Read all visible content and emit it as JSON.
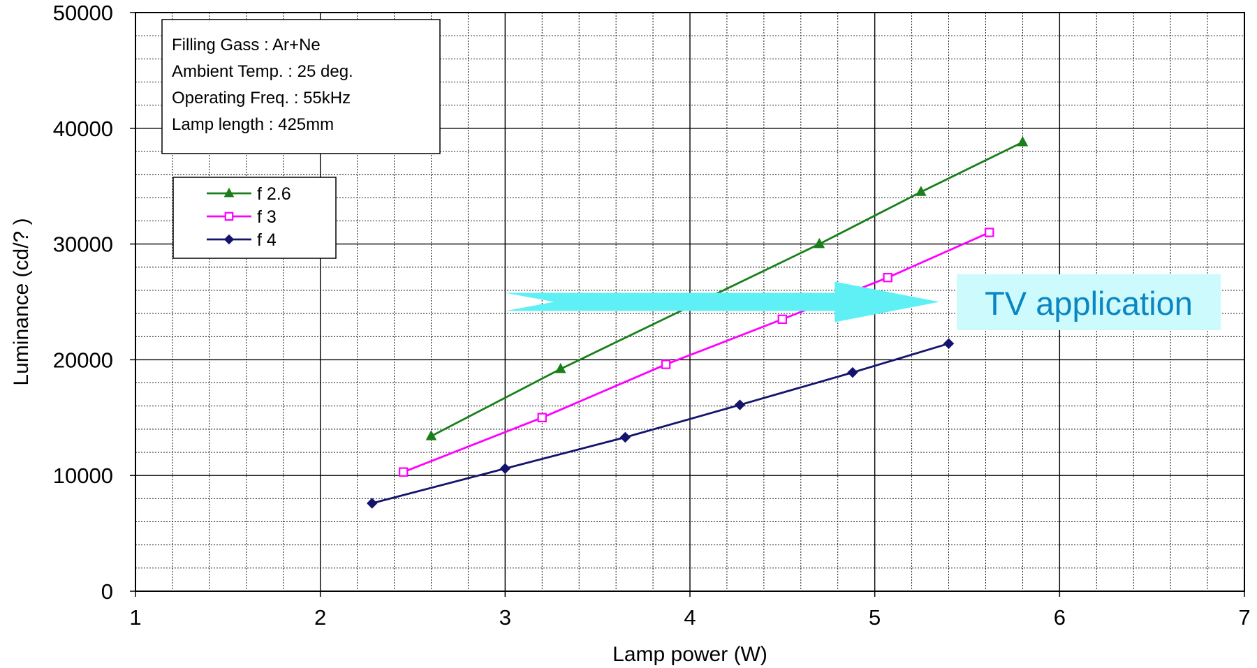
{
  "chart_data": {
    "type": "line",
    "xlabel": "Lamp power (W)",
    "ylabel": "Luminance (cd/? )",
    "xlim": [
      1,
      7
    ],
    "ylim": [
      0,
      50000
    ],
    "x_ticks": [
      "1",
      "2",
      "3",
      "4",
      "5",
      "6",
      "7"
    ],
    "y_ticks": [
      "0",
      "10000",
      "20000",
      "30000",
      "40000",
      "50000"
    ],
    "grid": true,
    "legend_position": "upper-left",
    "info_box": [
      "Filling Gass : Ar+Ne",
      "Ambient Temp. : 25 deg.",
      "Operating Freq. : 55kHz",
      "Lamp length : 425mm"
    ],
    "series": [
      {
        "name": "f  2.6",
        "color": "#1a7f1a",
        "marker": "triangle",
        "x": [
          2.6,
          3.3,
          4.7,
          5.25,
          5.8
        ],
        "y": [
          13400,
          19200,
          30000,
          34500,
          38800
        ]
      },
      {
        "name": "f  3",
        "color": "#ff00ff",
        "marker": "square",
        "x": [
          2.45,
          3.2,
          3.87,
          4.5,
          5.07,
          5.62
        ],
        "y": [
          10300,
          15000,
          19600,
          23500,
          27100,
          31000
        ]
      },
      {
        "name": "f  4",
        "color": "#14146e",
        "marker": "diamond",
        "x": [
          2.28,
          3.0,
          3.65,
          4.27,
          4.88,
          5.4
        ],
        "y": [
          7600,
          10600,
          13300,
          16100,
          18900,
          21400
        ]
      }
    ],
    "annotation": {
      "text": "TV application",
      "arrow_from_x": 3.0,
      "arrow_to_x": 5.35,
      "arrow_y": 25000,
      "arrow_color": "#5ff0f5",
      "box_color": "#cdfafc",
      "text_color": "#0a86c2"
    }
  }
}
